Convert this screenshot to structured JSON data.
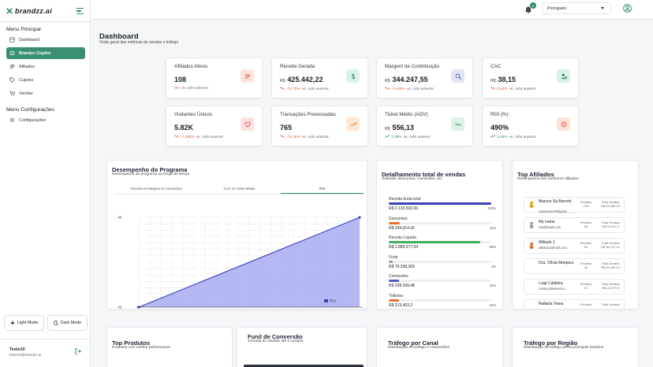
{
  "app": {
    "logo_text": "brandzz.ai"
  },
  "sidebar": {
    "section_main": "Menu Principal",
    "items": [
      {
        "label": "Dashboard",
        "icon": "dashboard-icon"
      },
      {
        "label": "Brandzz Copilot",
        "icon": "copilot-icon"
      },
      {
        "label": "Afiliados",
        "icon": "users-icon"
      },
      {
        "label": "Cupons",
        "icon": "tag-icon"
      },
      {
        "label": "Vendas",
        "icon": "cart-icon"
      }
    ],
    "section_config": "Menu Configurações",
    "config_items": [
      {
        "label": "Configurações",
        "icon": "settings-icon"
      }
    ],
    "light_mode": "Light Mode",
    "dark_mode": "Dark Mode",
    "user": {
      "name": "Teste10",
      "email": "teste10@brandzz.ai"
    }
  },
  "topbar": {
    "notifications": "9",
    "language": "Português"
  },
  "page": {
    "title": "Dashboard",
    "subtitle": "Visão geral das métricas de vendas e tráfego"
  },
  "kpis": [
    {
      "title": "Afiliados Ativos",
      "currency": "",
      "value": "108",
      "delta": "0%",
      "delta_label": "vs. mês anterior",
      "trend": "flat",
      "icon": "users-icon",
      "icon_bg": "#fde3dc",
      "icon_color": "#e0603c"
    },
    {
      "title": "Receita Gerada",
      "currency": "R$",
      "value": "425.442,22",
      "delta": "-74,79%",
      "delta_label": "vs. mês anterior",
      "trend": "down",
      "icon": "dollar-icon",
      "icon_bg": "#d9f2ea",
      "icon_color": "#2f8c68"
    },
    {
      "title": "Margem de Contribuição",
      "currency": "R$",
      "value": "344.247,55",
      "delta": "-74,69%",
      "delta_label": "vs. mês anterior",
      "trend": "down",
      "icon": "search-money-icon",
      "icon_bg": "#e1e4f5",
      "icon_color": "#4450a8"
    },
    {
      "title": "CAC",
      "currency": "R$",
      "value": "38,15",
      "delta": "0,52%",
      "delta_label": "vs. mês anterior",
      "trend": "down",
      "icon": "user-cost-icon",
      "icon_bg": "#dcf1e6",
      "icon_color": "#2f8c68"
    },
    {
      "title": "Visitantes Únicos",
      "currency": "",
      "value": "5.82K",
      "delta": "-7,495%",
      "delta_label": "vs. mês anterior",
      "trend": "down",
      "icon": "heart-icon",
      "icon_bg": "#fde0e0",
      "icon_color": "#e04848"
    },
    {
      "title": "Transações Processadas",
      "currency": "",
      "value": "765",
      "delta": "-75,38%",
      "delta_label": "vs. mês anterior",
      "trend": "down",
      "icon": "trend-icon",
      "icon_bg": "#fde8d6",
      "icon_color": "#e07a2a"
    },
    {
      "title": "Ticket Médio (AOV)",
      "currency": "R$",
      "value": "556,13",
      "delta": "2,39%",
      "delta_label": "vs. mês anterior",
      "trend": "up",
      "icon": "chart-line-icon",
      "icon_bg": "#dcf1e6",
      "icon_color": "#2f8c68"
    },
    {
      "title": "ROI (%)",
      "currency": "",
      "value": "490%",
      "delta": "2,25%",
      "delta_label": "vs. mês anterior",
      "trend": "up",
      "icon": "roi-icon",
      "icon_bg": "#fde3dc",
      "icon_color": "#e0603c"
    }
  ],
  "performance": {
    "title": "Desempenho do Programa",
    "subtitle": "Desempenho do programa ao longo do tempo",
    "tabs": [
      "Receita vs Margem vs Comissões",
      "CAC vs Ticket Médio",
      "ROI"
    ],
    "active_tab": 2
  },
  "chart_data": {
    "type": "area",
    "x": [
      10,
      11
    ],
    "series": [
      {
        "name": "ROI",
        "values": [
          43,
          49
        ]
      }
    ],
    "xticks": [
      "10",
      "11"
    ],
    "yticks": [
      "43",
      "49"
    ],
    "ylim": [
      43,
      49
    ],
    "grid": true,
    "legend": "bottom-right",
    "color": "#3b42b8"
  },
  "sales_detail": {
    "title": "Detalhamento total de vendas",
    "subtitle": "Subtotal, descontos, comissões, etc.",
    "rows": [
      {
        "label": "Receita bruta total",
        "value": "R$ 2.133.592,06",
        "pct": "100%",
        "fraction": 1.0,
        "color": "#3b42b8"
      },
      {
        "label": "Descontos",
        "value": "R$ 244.014,42",
        "pct": "11%",
        "fraction": 0.11,
        "color": "#e8742c"
      },
      {
        "label": "Receita Líquida",
        "value": "R$ 1.889.577,64",
        "pct": "89%",
        "fraction": 0.89,
        "color": "#3fae5e"
      },
      {
        "label": "Frete",
        "value": "R$ 76.038,369",
        "pct": "4%",
        "fraction": 0.04,
        "color": "#9a9a9a"
      },
      {
        "label": "Comissões",
        "value": "R$ 208.349,48",
        "pct": "10%",
        "fraction": 0.1,
        "color": "#4f56c8"
      },
      {
        "label": "Tributos",
        "value": "R$ 213.403,2",
        "pct": "10%",
        "fraction": 0.1,
        "color": "#e8742c"
      }
    ]
  },
  "top_affiliates": {
    "title": "Top Afiliados",
    "subtitle": "Desempenho dos melhores afiliados",
    "orders_label": "Pedidos",
    "total_label": "Total Vendas",
    "rows": [
      {
        "name": "Marcos Sá Barreto",
        "email": "mpbarreto79@gma...",
        "orders": "105",
        "total": "R$ 64.964,15",
        "medal": "#e0a020"
      },
      {
        "name": "My name",
        "email": "mail@mail.com",
        "orders": "96",
        "total": "R$ 54.007,5",
        "medal": "#9a9a9a"
      },
      {
        "name": "Afiliado 1",
        "email": "afiliado1@mail.com",
        "orders": "54",
        "total": "R$ 38.737,12",
        "medal": "#d07030"
      },
      {
        "name": "Dra. Olívia Marques",
        "email": "",
        "orders": "46",
        "total": "R$ 25.350,14",
        "medal": ""
      },
      {
        "name": "Luigi Caldeira",
        "email": "maria-julianeserro...",
        "orders": "37",
        "total": "R$ 24.377,6",
        "medal": ""
      },
      {
        "name": "Rafaela Viana",
        "email": "",
        "orders": "",
        "total": "",
        "medal": ""
      }
    ]
  },
  "bottom_cards": [
    {
      "title": "Top Produtos",
      "subtitle": "Produtos com melhor performance"
    },
    {
      "title": "Funil de Conversão",
      "subtitle": "Jornada do usuário até a compra"
    },
    {
      "title": "Tráfego por Canal",
      "subtitle": "Distribuição de tráfego e conversões"
    },
    {
      "title": "Tráfego por Região",
      "subtitle": "Distribuição do tráfego pelos principais Estados"
    }
  ]
}
